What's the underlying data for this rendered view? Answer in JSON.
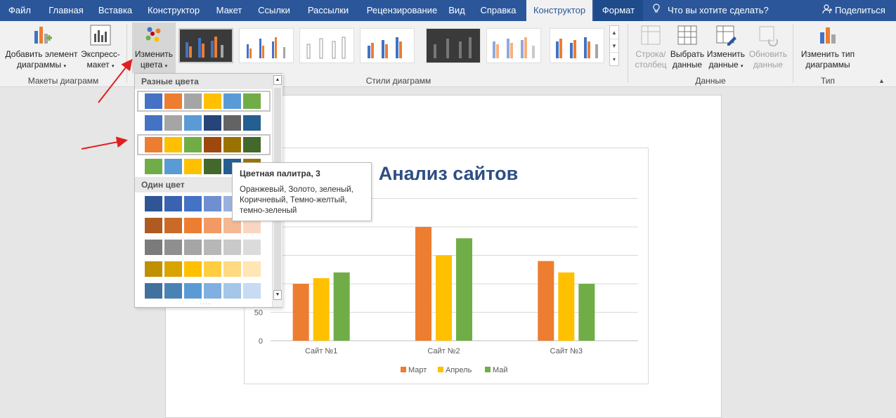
{
  "menu": {
    "tabs": [
      {
        "label": "Файл"
      },
      {
        "label": "Главная"
      },
      {
        "label": "Вставка"
      },
      {
        "label": "Конструктор"
      },
      {
        "label": "Макет"
      },
      {
        "label": "Ссылки"
      },
      {
        "label": "Рассылки"
      },
      {
        "label": "Рецензирование"
      },
      {
        "label": "Вид"
      },
      {
        "label": "Справка"
      },
      {
        "label": "Конструктор"
      },
      {
        "label": "Формат"
      }
    ],
    "help": "Что вы хотите сделать?",
    "share": "Поделиться",
    "help_icon": "lightbulb-icon",
    "share_icon": "person-icon"
  },
  "ribbon": {
    "add_element": {
      "line1": "Добавить элемент",
      "line2": "диаграммы"
    },
    "quick_layout": {
      "line1": "Экспресс-",
      "line2": "макет"
    },
    "change_colors": {
      "line1": "Изменить",
      "line2": "цвета"
    },
    "group_layouts": "Макеты диаграмм",
    "group_styles": "Стили диаграмм",
    "switch_row_col": {
      "line1": "Строка/",
      "line2": "столбец"
    },
    "select_data": {
      "line1": "Выбрать",
      "line2": "данные"
    },
    "edit_data": {
      "line1": "Изменить",
      "line2": "данные"
    },
    "refresh_data": {
      "line1": "Обновить",
      "line2": "данные"
    },
    "group_data": "Данные",
    "change_type": {
      "line1": "Изменить тип",
      "line2": "диаграммы"
    },
    "group_type": "Тип"
  },
  "palette": {
    "section_colorful": "Разные цвета",
    "section_mono": "Один цвет",
    "colorful_rows": [
      [
        "#4472c4",
        "#ed7d31",
        "#a5a5a5",
        "#ffc000",
        "#5b9bd5",
        "#70ad47"
      ],
      [
        "#4472c4",
        "#a5a5a5",
        "#5b9bd5",
        "#264478",
        "#636363",
        "#255e91"
      ],
      [
        "#ed7d31",
        "#ffc000",
        "#70ad47",
        "#9e480e",
        "#997300",
        "#43682b"
      ],
      [
        "#70ad47",
        "#5b9bd5",
        "#ffc000",
        "#43682b",
        "#255e91",
        "#997300"
      ]
    ],
    "mono_rows": [
      [
        "#2f5597",
        "#3a62b0",
        "#4472c4",
        "#6f8fd0",
        "#9ab0de",
        "#c3cfec"
      ],
      [
        "#ae5a21",
        "#c96a27",
        "#ed7d31",
        "#f19a64",
        "#f5b895",
        "#f9d6c2"
      ],
      [
        "#7b7b7b",
        "#8f8f8f",
        "#a5a5a5",
        "#b7b7b7",
        "#c9c9c9",
        "#dbdbdb"
      ],
      [
        "#bf9000",
        "#d9a300",
        "#ffc000",
        "#ffcd40",
        "#ffda80",
        "#ffe6b3"
      ],
      [
        "#41719c",
        "#4a82b4",
        "#5b9bd5",
        "#7fb0df",
        "#a3c6e9",
        "#c7dbf3"
      ]
    ]
  },
  "tooltip": {
    "title": "Цветная палитра, 3",
    "desc": "Оранжевый, Золото, зеленый, Коричневый, Темно-желтый, темно-зеленый"
  },
  "chart_data": {
    "type": "bar",
    "title": "Анализ сайтов",
    "categories": [
      "Сайт №1",
      "Сайт №2",
      "Сайт №3"
    ],
    "series": [
      {
        "name": "Март",
        "color": "#ed7d31",
        "values": [
          100,
          200,
          140
        ]
      },
      {
        "name": "Апрель",
        "color": "#ffc000",
        "values": [
          110,
          150,
          120
        ]
      },
      {
        "name": "Май",
        "color": "#70ad47",
        "values": [
          120,
          180,
          100
        ]
      }
    ],
    "yticks_visible": [
      "0",
      "50"
    ],
    "ylim": [
      0,
      250
    ],
    "grid": true,
    "legend": "bottom"
  }
}
